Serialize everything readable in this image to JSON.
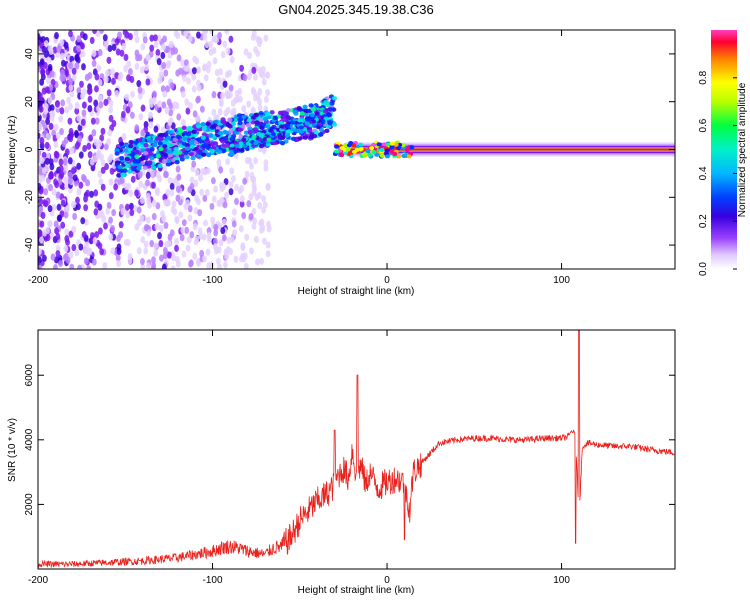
{
  "title": "GN04.2025.345.19.38.C36",
  "colors": {
    "snr_line": "#e8231e",
    "spectro_stops": [
      "#ffffff",
      "#e4d0ff",
      "#b880ff",
      "#7a16f0",
      "#3a00d8",
      "#0030ff",
      "#00a0ff",
      "#00e8e0",
      "#00ff80",
      "#a0ff00",
      "#ffff00",
      "#ffb000",
      "#ff2000",
      "#ff0080",
      "#ff40ff"
    ]
  },
  "chart_data": [
    {
      "type": "heatmap",
      "title": "GN04.2025.345.19.38.C36",
      "xlabel": "Height of straight line (km)",
      "ylabel": "Frequency (Hz)",
      "xlim": [
        -200,
        165
      ],
      "ylim": [
        -50,
        50
      ],
      "xticks": [
        -200,
        -100,
        0,
        100
      ],
      "xtick_labels": [
        "-200",
        "-100",
        "0",
        "100"
      ],
      "yticks": [
        -40,
        -20,
        0,
        20,
        40
      ],
      "ytick_labels": [
        "-40",
        "-20",
        "0",
        "20",
        "40"
      ],
      "colorbar": {
        "label": "Normalized spectral amplitude",
        "range": [
          0,
          1
        ],
        "ticks": [
          0.0,
          0.2,
          0.4,
          0.6,
          0.8
        ],
        "tick_labels": [
          "0.0",
          "0.2",
          "0.4",
          "0.6",
          "0.8"
        ]
      },
      "features": [
        {
          "name": "noise_region",
          "x_range": [
            -200,
            -70
          ],
          "freq_range": [
            -50,
            50
          ]
        },
        {
          "name": "rising_trace",
          "points": [
            [
              -155,
              -5
            ],
            [
              -130,
              0
            ],
            [
              -100,
              5
            ],
            [
              -80,
              8
            ],
            [
              -60,
              9
            ],
            [
              -40,
              12
            ],
            [
              -30,
              17
            ]
          ]
        },
        {
          "name": "carrier_line",
          "x_range": [
            -30,
            165
          ],
          "freq": 0,
          "max_amplitude": 1.0
        }
      ]
    },
    {
      "type": "line",
      "xlabel": "Height of straight line (km)",
      "ylabel": "SNR (10 * v/v)",
      "xlim": [
        -200,
        165
      ],
      "ylim": [
        0,
        7400
      ],
      "xticks": [
        -200,
        -100,
        0,
        100
      ],
      "xtick_labels": [
        "-200",
        "-100",
        "0",
        "100"
      ],
      "yticks": [
        2000,
        4000,
        6000
      ],
      "ytick_labels": [
        "2000",
        "4000",
        "6000"
      ],
      "x": [
        -200,
        -180,
        -160,
        -140,
        -130,
        -120,
        -110,
        -100,
        -95,
        -90,
        -85,
        -80,
        -75,
        -70,
        -65,
        -60,
        -55,
        -50,
        -45,
        -40,
        -35,
        -30,
        -28,
        -25,
        -22,
        -20,
        -18,
        -15,
        -12,
        -10,
        -8,
        -5,
        0,
        5,
        10,
        13,
        15,
        20,
        25,
        30,
        40,
        50,
        60,
        70,
        80,
        90,
        100,
        104,
        106,
        108,
        110,
        112,
        115,
        120,
        130,
        140,
        150,
        165
      ],
      "y": [
        150,
        150,
        200,
        250,
        300,
        350,
        450,
        550,
        650,
        700,
        650,
        550,
        500,
        450,
        650,
        700,
        1000,
        1500,
        1800,
        2100,
        2300,
        2600,
        2900,
        3100,
        2800,
        3700,
        3000,
        3200,
        2600,
        3000,
        2800,
        2500,
        2700,
        2800,
        2700,
        1800,
        3000,
        3300,
        3600,
        3900,
        4000,
        4050,
        4050,
        4000,
        4000,
        4050,
        4050,
        4100,
        4300,
        4100,
        1600,
        3800,
        3900,
        3850,
        3800,
        3800,
        3700,
        3600
      ],
      "spikes": [
        {
          "x": -17,
          "y": 6000
        },
        {
          "x": -30,
          "y": 4300
        },
        {
          "x": 10,
          "y": 900
        },
        {
          "x": 110,
          "y": 7400
        },
        {
          "x": 108,
          "y": 800
        }
      ]
    }
  ]
}
